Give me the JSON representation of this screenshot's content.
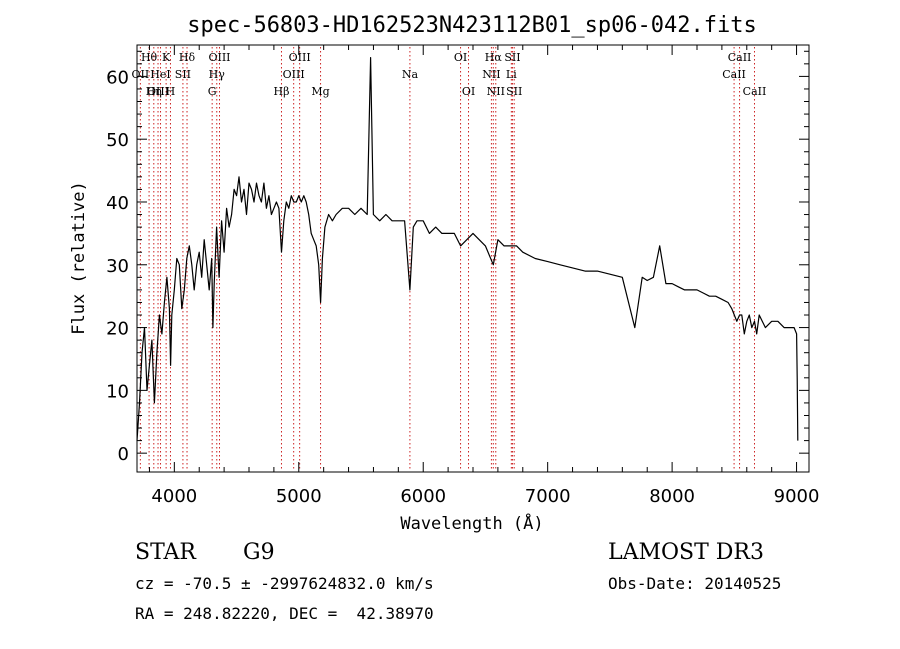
{
  "chart_data": {
    "type": "line",
    "title": "spec-56803-HD162523N423112B01_sp06-042.fits",
    "xlabel": "Wavelength (Å)",
    "ylabel": "Flux (relative)",
    "xlim": [
      3700,
      9100
    ],
    "ylim": [
      -3,
      65
    ],
    "xticks": [
      4000,
      5000,
      6000,
      7000,
      8000,
      9000
    ],
    "yticks": [
      0,
      10,
      20,
      30,
      40,
      50,
      60
    ],
    "grid": false,
    "series": [
      {
        "x": [
          3700,
          3720,
          3740,
          3760,
          3780,
          3800,
          3820,
          3840,
          3860,
          3880,
          3900,
          3920,
          3940,
          3960,
          3970,
          3980,
          4000,
          4020,
          4040,
          4060,
          4080,
          4100,
          4120,
          4140,
          4160,
          4180,
          4200,
          4220,
          4240,
          4260,
          4280,
          4300,
          4310,
          4320,
          4340,
          4360,
          4380,
          4400,
          4420,
          4440,
          4460,
          4480,
          4500,
          4520,
          4540,
          4560,
          4580,
          4600,
          4620,
          4640,
          4660,
          4680,
          4700,
          4720,
          4740,
          4760,
          4780,
          4800,
          4820,
          4840,
          4861,
          4880,
          4900,
          4920,
          4940,
          4960,
          4980,
          5000,
          5020,
          5040,
          5060,
          5080,
          5100,
          5120,
          5140,
          5160,
          5175,
          5190,
          5210,
          5240,
          5270,
          5300,
          5350,
          5400,
          5450,
          5500,
          5550,
          5577,
          5600,
          5650,
          5700,
          5750,
          5800,
          5850,
          5893,
          5920,
          5950,
          6000,
          6050,
          6100,
          6150,
          6200,
          6250,
          6300,
          6350,
          6400,
          6450,
          6500,
          6563,
          6600,
          6650,
          6700,
          6750,
          6800,
          6900,
          7000,
          7100,
          7200,
          7300,
          7400,
          7500,
          7600,
          7700,
          7760,
          7800,
          7850,
          7900,
          7950,
          8000,
          8050,
          8100,
          8150,
          8200,
          8250,
          8300,
          8350,
          8400,
          8450,
          8480,
          8500,
          8520,
          8542,
          8560,
          8580,
          8600,
          8620,
          8640,
          8662,
          8680,
          8700,
          8750,
          8800,
          8850,
          8900,
          8950,
          8980,
          9000,
          9005,
          9010
        ],
        "y": [
          2,
          8,
          16,
          20,
          10,
          14,
          18,
          8,
          16,
          22,
          19,
          24,
          28,
          23,
          14,
          22,
          26,
          31,
          30,
          23,
          26,
          31,
          33,
          30,
          26,
          30,
          32,
          28,
          34,
          30,
          26,
          31,
          20,
          27,
          36,
          28,
          37,
          32,
          39,
          36,
          38,
          42,
          41,
          44,
          40,
          42,
          38,
          43,
          42,
          40,
          43,
          41,
          40,
          43,
          39,
          41,
          38,
          39,
          40,
          39,
          32,
          37,
          40,
          39,
          41,
          40,
          40,
          41,
          40,
          41,
          40,
          38,
          35,
          34,
          33,
          30,
          24,
          31,
          36,
          38,
          37,
          38,
          39,
          39,
          38,
          39,
          38,
          63,
          38,
          37,
          38,
          37,
          37,
          37,
          26,
          36,
          37,
          37,
          35,
          36,
          35,
          35,
          35,
          33,
          34,
          35,
          34,
          33,
          30,
          34,
          33,
          33,
          33,
          32,
          31,
          30.5,
          30,
          29.5,
          29,
          29,
          28.5,
          28,
          20,
          28,
          27.5,
          28,
          33,
          27,
          27,
          26.5,
          26,
          26,
          26,
          25.5,
          25,
          25,
          24.5,
          24,
          23,
          22,
          21,
          22,
          22,
          19,
          21,
          22,
          20,
          21,
          19,
          22,
          20,
          21,
          21,
          20,
          20,
          20,
          19,
          12,
          2
        ]
      }
    ],
    "lines": [
      {
        "label": "Hθ",
        "x": 3797,
        "row": 0
      },
      {
        "label": "OII",
        "x": 3727,
        "row": 1
      },
      {
        "label": "OIII",
        "x": 3869,
        "row": 2
      },
      {
        "label": "K",
        "x": 3934,
        "row": 0
      },
      {
        "label": "HeI",
        "x": 3889,
        "row": 1
      },
      {
        "label": "Hη",
        "x": 3835,
        "row": 2
      },
      {
        "label": "SII",
        "x": 4069,
        "row": 1
      },
      {
        "label": "H",
        "x": 3969,
        "row": 2
      },
      {
        "label": "Hδ",
        "x": 4102,
        "row": 0
      },
      {
        "label": "OIII",
        "x": 4363,
        "row": 0
      },
      {
        "label": "Hγ",
        "x": 4341,
        "row": 1
      },
      {
        "label": "G",
        "x": 4304,
        "row": 2
      },
      {
        "label": "Hβ",
        "x": 4861,
        "row": 2
      },
      {
        "label": "OIII",
        "x": 5007,
        "row": 0
      },
      {
        "label": "OIII",
        "x": 4959,
        "row": 1
      },
      {
        "label": "Mg",
        "x": 5175,
        "row": 2
      },
      {
        "label": "Na",
        "x": 5893,
        "row": 1
      },
      {
        "label": "OI",
        "x": 6300,
        "row": 0
      },
      {
        "label": "OI",
        "x": 6364,
        "row": 2
      },
      {
        "label": "Hα",
        "x": 6563,
        "row": 0
      },
      {
        "label": "SII",
        "x": 6717,
        "row": 0
      },
      {
        "label": "NII",
        "x": 6548,
        "row": 1
      },
      {
        "label": "Li",
        "x": 6708,
        "row": 1
      },
      {
        "label": "NII",
        "x": 6583,
        "row": 2
      },
      {
        "label": "SII",
        "x": 6731,
        "row": 2
      },
      {
        "label": "CaII",
        "x": 8542,
        "row": 0
      },
      {
        "label": "CaII",
        "x": 8498,
        "row": 1
      },
      {
        "label": "CaII",
        "x": 8662,
        "row": 2
      }
    ]
  },
  "info": {
    "class": "STAR",
    "subclass": "G9",
    "survey": "LAMOST DR3",
    "velocity": "cz = -70.5 ± -2997624832.0 km/s",
    "obs_date": "Obs-Date: 20140525",
    "coords": "RA = 248.82220, DEC =  42.38970"
  }
}
